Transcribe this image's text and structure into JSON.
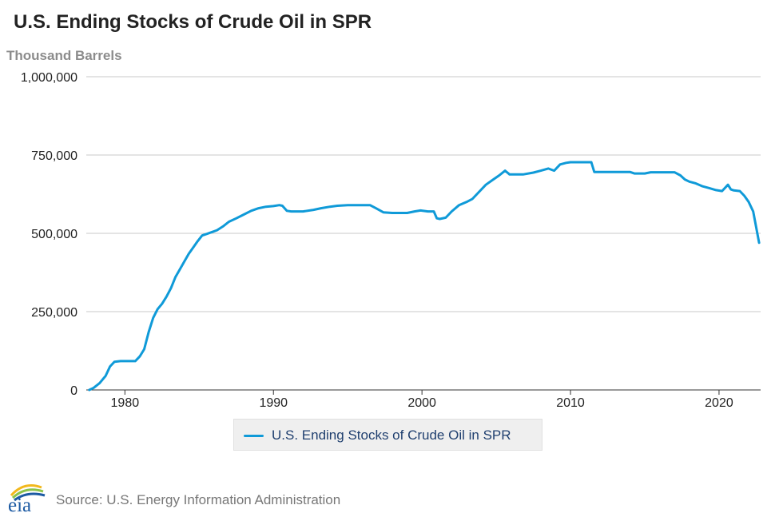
{
  "page": {
    "title": "U.S. Ending Stocks of Crude Oil in SPR",
    "units_label": "Thousand Barrels",
    "source": "Source: U.S. Energy Information Administration",
    "logo_text": "eia"
  },
  "colors": {
    "series": "#0f9ad8",
    "grid": "#c8c8c8",
    "logo_blue": "#1c5aa3",
    "logo_green": "#8bc34a",
    "logo_yellow": "#f2b81c"
  },
  "legend": {
    "label": "U.S. Ending Stocks of Crude Oil in SPR",
    "placement": "bottom-center"
  },
  "chart_data": {
    "type": "line",
    "title": "U.S. Ending Stocks of Crude Oil in SPR",
    "ylabel": "Thousand Barrels",
    "xlabel": "",
    "ylim": [
      0,
      1000000
    ],
    "xlim": [
      1977.4,
      2022.8
    ],
    "yticks": [
      0,
      250000,
      500000,
      750000,
      1000000
    ],
    "ytick_labels": [
      "0",
      "250,000",
      "500,000",
      "750,000",
      "1,000,000"
    ],
    "xticks": [
      1980,
      1990,
      2000,
      2010,
      2020
    ],
    "xtick_labels": [
      "1980",
      "1990",
      "2000",
      "2010",
      "2020"
    ],
    "grid": true,
    "series": [
      {
        "name": "U.S. Ending Stocks of Crude Oil in SPR",
        "x": [
          1977.6,
          1977.9,
          1978.3,
          1978.7,
          1979.0,
          1979.3,
          1979.7,
          1980.0,
          1980.4,
          1980.7,
          1981.0,
          1981.3,
          1981.6,
          1981.9,
          1982.2,
          1982.5,
          1982.8,
          1983.1,
          1983.4,
          1983.7,
          1984.0,
          1984.3,
          1984.6,
          1984.9,
          1985.2,
          1985.5,
          1985.8,
          1986.2,
          1986.6,
          1987.0,
          1987.5,
          1988.0,
          1988.5,
          1989.0,
          1989.5,
          1990.0,
          1990.4,
          1990.6,
          1990.9,
          1991.2,
          1991.4,
          1992.0,
          1992.7,
          1993.2,
          1993.8,
          1994.3,
          1995.0,
          1996.0,
          1996.5,
          1996.9,
          1997.4,
          1998.0,
          1999.0,
          1999.5,
          1999.9,
          2000.4,
          2000.8,
          2001.0,
          2001.2,
          2001.6,
          2002.0,
          2002.5,
          2003.0,
          2003.4,
          2003.8,
          2004.3,
          2004.8,
          2005.2,
          2005.6,
          2005.9,
          2006.2,
          2006.8,
          2007.5,
          2008.0,
          2008.5,
          2008.9,
          2009.3,
          2009.7,
          2010.0,
          2010.5,
          2011.0,
          2011.4,
          2011.6,
          2012.5,
          2013.5,
          2014.0,
          2014.3,
          2015.0,
          2015.4,
          2016.0,
          2016.5,
          2017.0,
          2017.4,
          2017.7,
          2018.0,
          2018.4,
          2018.9,
          2019.3,
          2019.8,
          2020.2,
          2020.4,
          2020.6,
          2020.8,
          2021.0,
          2021.4,
          2021.7,
          2022.0,
          2022.3,
          2022.5,
          2022.7
        ],
        "values": [
          0,
          7000,
          22000,
          45000,
          75000,
          90000,
          92000,
          92000,
          92000,
          92000,
          107000,
          130000,
          185000,
          230000,
          258000,
          275000,
          298000,
          325000,
          360000,
          385000,
          410000,
          435000,
          455000,
          475000,
          493000,
          498000,
          503000,
          510000,
          522000,
          537000,
          548000,
          560000,
          572000,
          580000,
          585000,
          587000,
          590000,
          588000,
          572000,
          570000,
          570000,
          570000,
          575000,
          580000,
          585000,
          588000,
          590000,
          590000,
          590000,
          580000,
          567000,
          565000,
          565000,
          570000,
          573000,
          570000,
          570000,
          548000,
          546000,
          550000,
          570000,
          590000,
          600000,
          610000,
          630000,
          655000,
          672000,
          685000,
          700000,
          688000,
          688000,
          688000,
          694000,
          700000,
          707000,
          700000,
          720000,
          725000,
          727000,
          727000,
          727000,
          727000,
          696000,
          696000,
          696000,
          696000,
          691000,
          691000,
          695000,
          695000,
          695000,
          695000,
          685000,
          672000,
          665000,
          660000,
          650000,
          645000,
          638000,
          635000,
          645000,
          655000,
          640000,
          637000,
          635000,
          620000,
          600000,
          570000,
          520000,
          470000
        ]
      }
    ]
  }
}
